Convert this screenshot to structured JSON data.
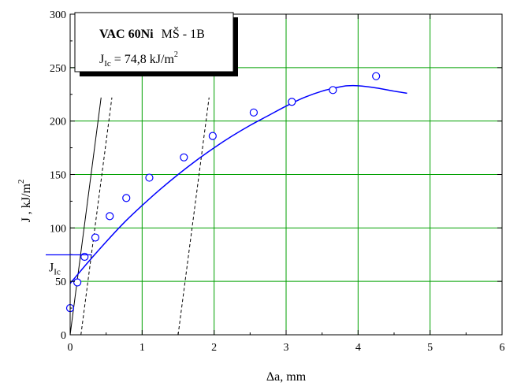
{
  "chart_data": {
    "type": "scatter",
    "title": "",
    "xlabel": "Δa,  mm",
    "ylabel_main": "J ,  kJ/m",
    "ylabel_sup": "2",
    "xlim": [
      0,
      6
    ],
    "ylim": [
      0,
      300
    ],
    "x_ticks": [
      0,
      1,
      2,
      3,
      4,
      5,
      6
    ],
    "y_ticks": [
      0,
      50,
      100,
      150,
      200,
      250,
      300
    ],
    "grid": true,
    "grid_color": "#00a000",
    "series": [
      {
        "marker": "open-circle",
        "color": "#0000ff",
        "x": [
          0.0,
          0.1,
          0.2,
          0.35,
          0.55,
          0.78,
          1.1,
          1.58,
          1.98,
          2.55,
          3.08,
          3.65,
          4.25
        ],
        "y": [
          25,
          49,
          73,
          91,
          111,
          128,
          147,
          166,
          186,
          208,
          218,
          229,
          242
        ]
      }
    ],
    "fit_curve": {
      "color": "#0000ff",
      "x": [
        0,
        0.25,
        0.5,
        0.75,
        1.0,
        1.25,
        1.5,
        1.75,
        2.0,
        2.25,
        2.5,
        2.75,
        3.0,
        3.25,
        3.5,
        3.75,
        3.85,
        4.0,
        4.25,
        4.5,
        4.68
      ],
      "y": [
        48,
        68,
        87,
        105,
        121,
        136,
        150,
        163,
        175,
        186,
        196,
        205,
        214,
        222,
        228,
        232,
        233,
        233,
        231,
        228,
        226
      ]
    },
    "blunting_line": {
      "color": "#000000",
      "style": "solid",
      "x": [
        0,
        0.43
      ],
      "y": [
        0,
        222
      ]
    },
    "offset_lines": [
      {
        "color": "#000000",
        "style": "dashed",
        "x": [
          0.15,
          0.58
        ],
        "y": [
          0,
          222
        ]
      },
      {
        "color": "#000000",
        "style": "dashed",
        "x": [
          1.5,
          1.93
        ],
        "y": [
          0,
          222
        ]
      }
    ],
    "jic_marker": {
      "label_main": "J",
      "label_sub": "Ic",
      "color": "#0000ff",
      "y": 74.8,
      "x_end": 0.3
    },
    "legend": {
      "placement": "top-left",
      "line1_bold": "VAC 60Ni",
      "line1_rest": "MŠ - 1B",
      "line2_main": "J",
      "line2_sub": "Ic",
      "line2_value": " = 74,8 kJ/m",
      "line2_sup": "2",
      "color": "#0000ff"
    }
  }
}
